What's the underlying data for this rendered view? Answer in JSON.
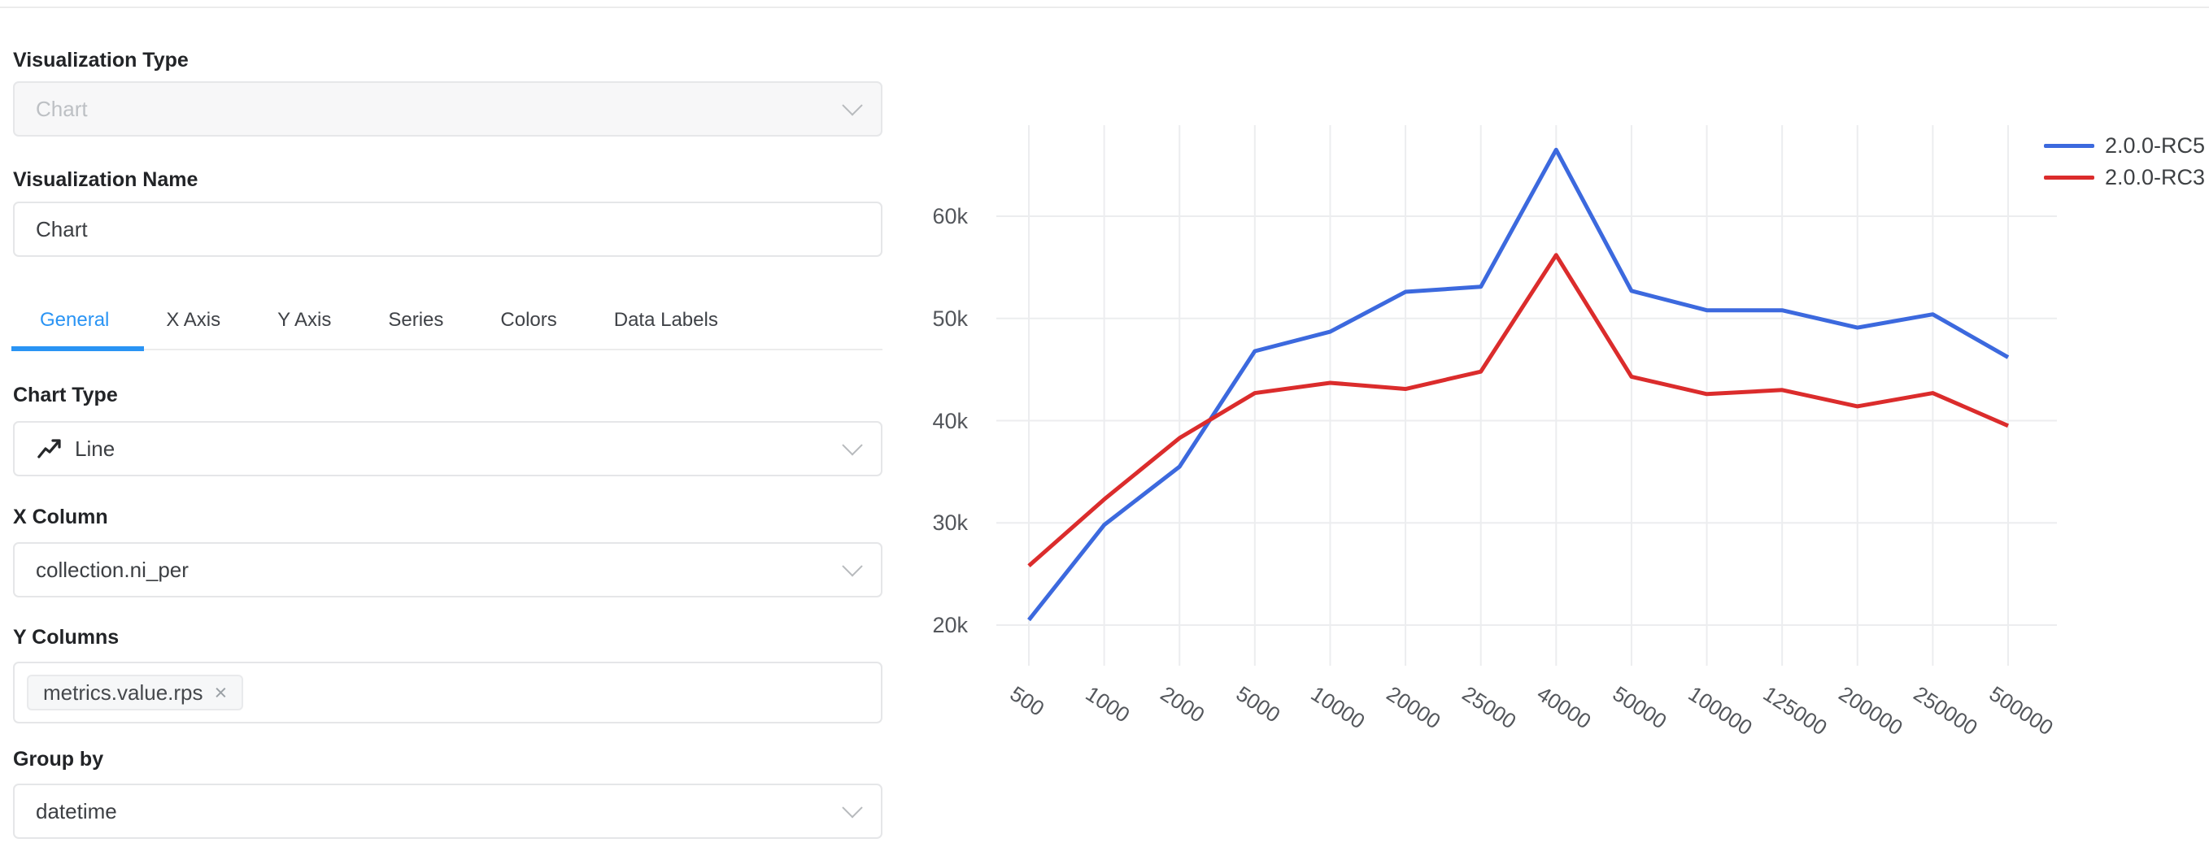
{
  "panel": {
    "visualization_type": {
      "label": "Visualization Type",
      "value": "Chart",
      "disabled": true
    },
    "visualization_name": {
      "label": "Visualization Name",
      "value": "Chart"
    },
    "tabs": [
      {
        "label": "General",
        "active": true
      },
      {
        "label": "X Axis",
        "active": false
      },
      {
        "label": "Y Axis",
        "active": false
      },
      {
        "label": "Series",
        "active": false
      },
      {
        "label": "Colors",
        "active": false
      },
      {
        "label": "Data Labels",
        "active": false
      }
    ],
    "chart_type": {
      "label": "Chart Type",
      "value": "Line",
      "icon": "line-chart-icon"
    },
    "x_column": {
      "label": "X Column",
      "value": "collection.ni_per"
    },
    "y_columns": {
      "label": "Y Columns",
      "tags": [
        {
          "text": "metrics.value.rps",
          "remove_glyph": "×"
        }
      ]
    },
    "group_by": {
      "label": "Group by",
      "value": "datetime"
    }
  },
  "colors": {
    "accent_blue": "#2a94f4",
    "series_blue": "#3c69de",
    "series_red": "#db2c2c",
    "gridline": "#ecedef",
    "tick_text": "#53565b"
  },
  "chart_data": {
    "type": "line",
    "x": [
      "500",
      "1000",
      "2000",
      "5000",
      "10000",
      "20000",
      "25000",
      "40000",
      "50000",
      "100000",
      "125000",
      "200000",
      "250000",
      "500000"
    ],
    "series": [
      {
        "name": "2.0.0-RC5",
        "color": "#3c69de",
        "values": [
          20500,
          29800,
          35500,
          46800,
          48700,
          52600,
          53100,
          66500,
          52700,
          50800,
          50800,
          49100,
          50400,
          46200
        ]
      },
      {
        "name": "2.0.0-RC3",
        "color": "#db2c2c",
        "values": [
          25800,
          32300,
          38300,
          42700,
          43700,
          43100,
          44800,
          56200,
          44300,
          42600,
          43000,
          41400,
          42700,
          39500
        ]
      }
    ],
    "yticks": [
      20000,
      30000,
      40000,
      50000,
      60000
    ],
    "ytick_labels": [
      "20k",
      "30k",
      "40k",
      "50k",
      "60k"
    ],
    "ylim": [
      18000,
      67000
    ],
    "grid": true,
    "legend_position": "top-right",
    "xtick_rotation_deg": 33,
    "title": "",
    "xlabel": "",
    "ylabel": ""
  }
}
